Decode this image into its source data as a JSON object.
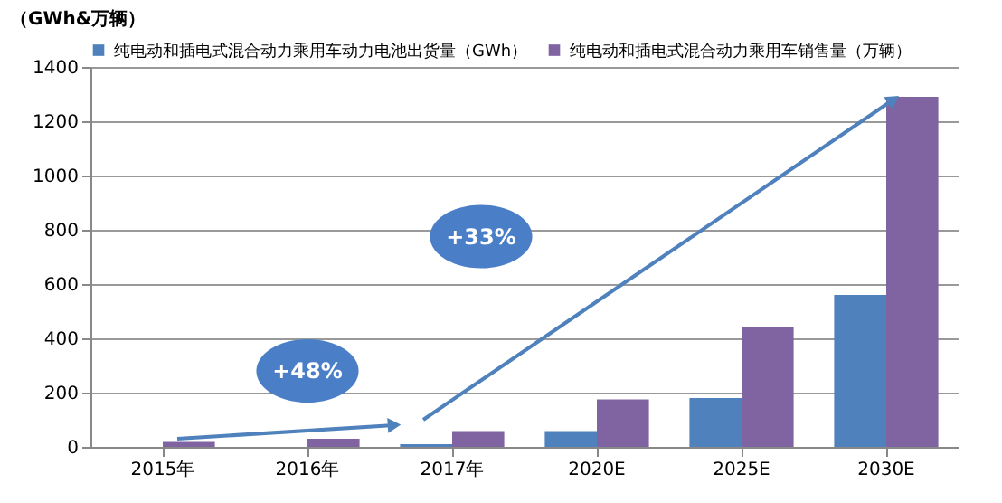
{
  "chart_data": {
    "type": "bar",
    "ylabel": "（GWh&万辆）",
    "categories": [
      "2015年",
      "2016年",
      "2017年",
      "2020E",
      "2025E",
      "2030E"
    ],
    "series": [
      {
        "name": "纯电动和插电式混合动力乘用车动力电池出货量（GWh）",
        "color": "#4f81bd",
        "values": [
          null,
          null,
          10,
          58,
          180,
          560
        ]
      },
      {
        "name": "纯电动和插电式混合动力乘用车销售量（万辆）",
        "color": "#8064a2",
        "values": [
          18,
          30,
          58,
          175,
          440,
          1290
        ]
      }
    ],
    "ylim": [
      0,
      1400
    ],
    "yticks": [
      0,
      200,
      400,
      600,
      800,
      1000,
      1200,
      1400
    ],
    "grid": "y",
    "legend": "top",
    "annotations": [
      "+48%",
      "+33%"
    ]
  }
}
